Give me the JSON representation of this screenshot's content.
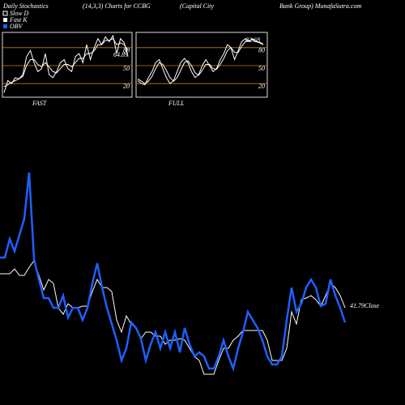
{
  "header": {
    "title": "Daily Stochastics",
    "subtitle": "(14,3,3) Charts for CCBG",
    "company": "(Capital City",
    "source": "Bank Group) MunafaSutra.com"
  },
  "chart_data": [
    {
      "type": "line",
      "title": "FAST",
      "annotation": "64.89",
      "ylim": [
        0,
        100
      ],
      "yticks": [
        80,
        50,
        20
      ],
      "grid": true,
      "grid_color": "#b8860b",
      "series": [
        {
          "name": "Slow D",
          "color": "#ffffff",
          "values": [
            15,
            18,
            22,
            25,
            28,
            32,
            50,
            60,
            60,
            52,
            48,
            55,
            48,
            40,
            38,
            45,
            52,
            52,
            48,
            55,
            62,
            62,
            70,
            70,
            75,
            85,
            85,
            92,
            92,
            95,
            85,
            88,
            85,
            75
          ]
        },
        {
          "name": "Fast K",
          "color": "#ffffff",
          "values": [
            5,
            25,
            20,
            30,
            28,
            35,
            65,
            75,
            55,
            40,
            45,
            70,
            35,
            30,
            40,
            55,
            60,
            45,
            40,
            65,
            70,
            55,
            85,
            60,
            80,
            95,
            85,
            98,
            90,
            100,
            70,
            95,
            88,
            65
          ]
        }
      ]
    },
    {
      "type": "line",
      "title": "FULL",
      "annotation": "82.68",
      "ylim": [
        0,
        100
      ],
      "yticks": [
        80,
        50,
        20
      ],
      "grid": true,
      "grid_color": "#b8860b",
      "series": [
        {
          "color": "#ffffff",
          "values": [
            28,
            24,
            20,
            24,
            32,
            45,
            55,
            52,
            42,
            30,
            24,
            30,
            42,
            55,
            58,
            50,
            38,
            34,
            42,
            52,
            52,
            45,
            44,
            52,
            62,
            75,
            80,
            72,
            72,
            82,
            90,
            92,
            93,
            90,
            89,
            86
          ]
        },
        {
          "color": "#ffffff",
          "values": [
            25,
            20,
            18,
            30,
            40,
            55,
            60,
            45,
            30,
            20,
            25,
            40,
            55,
            62,
            55,
            40,
            30,
            35,
            50,
            60,
            50,
            40,
            45,
            60,
            70,
            85,
            80,
            60,
            75,
            90,
            95,
            90,
            95,
            90,
            88,
            85
          ]
        }
      ]
    },
    {
      "type": "line",
      "annotation": "41.79Close",
      "ylim": [
        0,
        500
      ],
      "series": [
        {
          "color": "#ffffff",
          "values": [
            162,
            162,
            162,
            168,
            160,
            160,
            170,
            178,
            160,
            142,
            155,
            150,
            120,
            112,
            125,
            120,
            120,
            122,
            122,
            140,
            155,
            145,
            145,
            140,
            105,
            90,
            110,
            100,
            95,
            82,
            90,
            90,
            85,
            85,
            75,
            80,
            80,
            82,
            80,
            70,
            60,
            55,
            38,
            38,
            38,
            55,
            70,
            70,
            80,
            85,
            92,
            92,
            92,
            92,
            92,
            80,
            55,
            55,
            55,
            70,
            115,
            100,
            130,
            132,
            135,
            130,
            122,
            135,
            150,
            145,
            135,
            120
          ]
        },
        {
          "name": "OBV",
          "color": "#1f5fff",
          "values": [
            182,
            182,
            205,
            190,
            210,
            230,
            287,
            180,
            155,
            132,
            132,
            120,
            120,
            135,
            108,
            120,
            120,
            105,
            120,
            150,
            175,
            145,
            120,
            100,
            80,
            55,
            70,
            102,
            95,
            82,
            55,
            75,
            90,
            70,
            90,
            70,
            90,
            65,
            95,
            75,
            60,
            65,
            60,
            45,
            45,
            60,
            80,
            60,
            45,
            70,
            90,
            115,
            105,
            95,
            80,
            60,
            50,
            50,
            60,
            105,
            145,
            115,
            125,
            145,
            155,
            145,
            122,
            125,
            155,
            135,
            120,
            102
          ]
        }
      ]
    }
  ]
}
